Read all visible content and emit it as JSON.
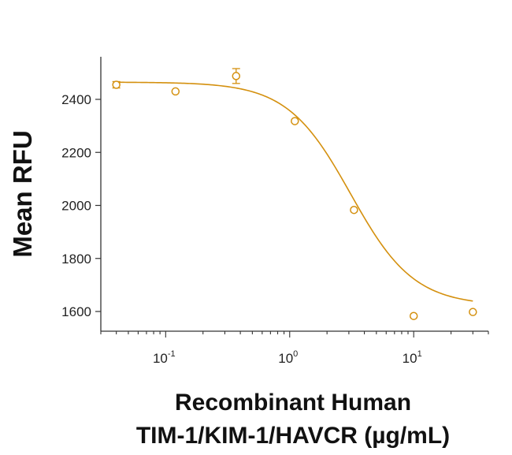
{
  "chart_data": {
    "type": "scatter",
    "title": "",
    "xlabel_line1": "Recombinant Human",
    "xlabel_line2": "TIM-1/KIM-1/HAVCR (µg/mL)",
    "ylabel": "Mean RFU",
    "x_scale": "log",
    "xlim": [
      0.03,
      40
    ],
    "ylim": [
      1560,
      2560
    ],
    "x_ticks": [
      {
        "value": 0.1,
        "base": "10",
        "exp": "-1"
      },
      {
        "value": 1,
        "base": "10",
        "exp": "0"
      },
      {
        "value": 10,
        "base": "10",
        "exp": "1"
      }
    ],
    "y_ticks": [
      {
        "value": 1600,
        "label": "1600"
      },
      {
        "value": 1800,
        "label": "1800"
      },
      {
        "value": 2000,
        "label": "2000"
      },
      {
        "value": 2200,
        "label": "2200"
      },
      {
        "value": 2400,
        "label": "2400"
      }
    ],
    "grid": false,
    "legend": "none",
    "color": "#D4900E",
    "series": [
      {
        "points": [
          {
            "x": 0.04,
            "y": 2455,
            "err": 12
          },
          {
            "x": 0.12,
            "y": 2430,
            "err": 0
          },
          {
            "x": 0.37,
            "y": 2488,
            "err": 28
          },
          {
            "x": 1.1,
            "y": 2318,
            "err": 0
          },
          {
            "x": 3.3,
            "y": 1983,
            "err": 0
          },
          {
            "x": 10,
            "y": 1583,
            "err": 0
          },
          {
            "x": 30,
            "y": 1598,
            "err": 0
          }
        ],
        "fit": {
          "model": "4PL",
          "top": 2465,
          "bottom": 1622,
          "ic50": 3.1,
          "hill": 1.7,
          "x_range": [
            0.04,
            30
          ]
        }
      }
    ]
  }
}
